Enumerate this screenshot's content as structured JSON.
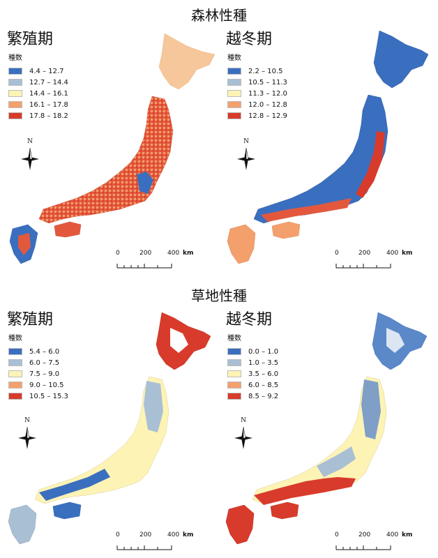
{
  "groups": [
    {
      "title": "森林性種",
      "panels": [
        {
          "season": "繁殖期",
          "legend_title": "種数",
          "classes": [
            {
              "label": "4.4 – 12.7",
              "color": "#3a6fbf"
            },
            {
              "label": "12.7 – 14.4",
              "color": "#a9bfd4"
            },
            {
              "label": "14.4 – 16.1",
              "color": "#fdf3b5"
            },
            {
              "label": "16.1 – 17.8",
              "color": "#f3a06c"
            },
            {
              "label": "17.8 – 18.2",
              "color": "#d83b2b"
            }
          ]
        },
        {
          "season": "越冬期",
          "legend_title": "種数",
          "classes": [
            {
              "label": "2.2 – 10.5",
              "color": "#3a6fbf"
            },
            {
              "label": "10.5 – 11.3",
              "color": "#a9bfd4"
            },
            {
              "label": "11.3 – 12.0",
              "color": "#fdf3b5"
            },
            {
              "label": "12.0 – 12.8",
              "color": "#f3a06c"
            },
            {
              "label": "12.8 – 12.9",
              "color": "#d83b2b"
            }
          ]
        }
      ]
    },
    {
      "title": "草地性種",
      "panels": [
        {
          "season": "繁殖期",
          "legend_title": "種数",
          "classes": [
            {
              "label": "5.4 – 6.0",
              "color": "#3a6fbf"
            },
            {
              "label": "6.0 – 7.5",
              "color": "#a9bfd4"
            },
            {
              "label": "7.5 – 9.0",
              "color": "#fdf3b5"
            },
            {
              "label": "9.0 – 10.5",
              "color": "#f3a06c"
            },
            {
              "label": "10.5 – 15.3",
              "color": "#d83b2b"
            }
          ]
        },
        {
          "season": "越冬期",
          "legend_title": "種数",
          "classes": [
            {
              "label": "0.0 – 1.0",
              "color": "#3a6fbf"
            },
            {
              "label": "1.0 – 3.5",
              "color": "#a9bfd4"
            },
            {
              "label": "3.5 – 6.0",
              "color": "#fdf3b5"
            },
            {
              "label": "6.0 – 8.5",
              "color": "#f3a06c"
            },
            {
              "label": "8.5 – 9.2",
              "color": "#d83b2b"
            }
          ]
        }
      ]
    }
  ],
  "compass_label": "N",
  "scale": {
    "ticks": [
      "0",
      "200",
      "400"
    ],
    "unit": "km"
  }
}
